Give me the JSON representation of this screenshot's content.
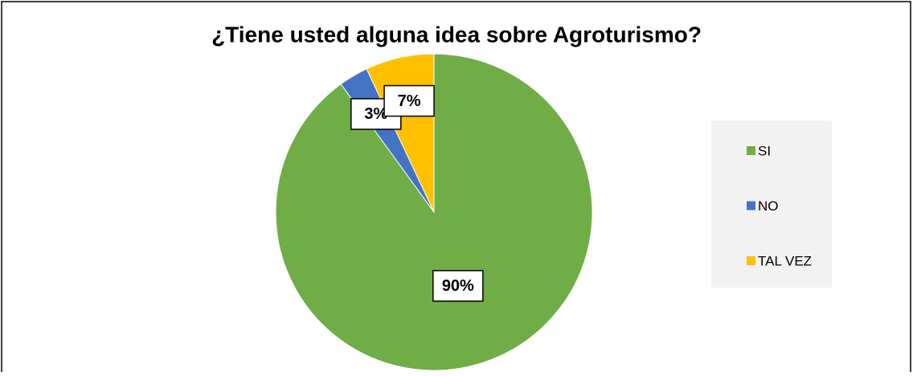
{
  "chart_data": {
    "type": "pie",
    "title": "¿Tiene usted alguna idea sobre Agroturismo?",
    "categories": [
      "SI",
      "NO",
      "TAL VEZ"
    ],
    "values": [
      90,
      3,
      7
    ],
    "value_labels": [
      "90%",
      "3%",
      "7%"
    ],
    "colors": [
      "#70ad47",
      "#4472c4",
      "#ffc000"
    ],
    "legend": "right"
  }
}
